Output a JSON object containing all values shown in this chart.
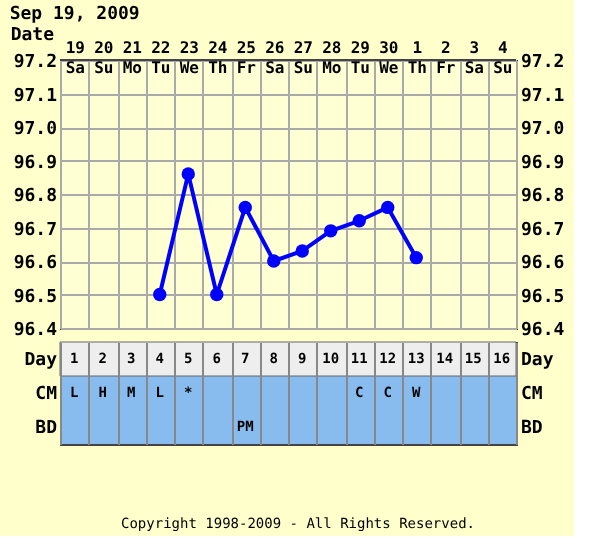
{
  "chart_data": [
    {
      "type": "line",
      "title": "Sep 19, 2009",
      "xlabel": "Date",
      "categories": [
        "19 Sa",
        "20 Su",
        "21 Mo",
        "22 Tu",
        "23 We",
        "24 Th",
        "25 Fr",
        "26 Sa",
        "27 Su",
        "28 Mo",
        "29 Tu",
        "30 We",
        "1 Th",
        "2 Fr",
        "3 Sa",
        "4 Su"
      ],
      "values": [
        null,
        null,
        null,
        96.5,
        96.86,
        96.5,
        96.76,
        96.6,
        96.63,
        96.69,
        96.72,
        96.76,
        96.61,
        null,
        null,
        null
      ],
      "color": "#0000ff",
      "marker": "circle",
      "line_style": "solid",
      "grid": true,
      "ylim": [
        96.4,
        97.2
      ],
      "yticks": [
        96.4,
        96.5,
        96.6,
        96.7,
        96.8,
        96.9,
        {
          "value": 97.0,
          "label": "97.0"
        },
        97.1,
        97.2
      ],
      "y2lim": [
        96.4,
        97.2
      ],
      "y2ticks": [
        96.4,
        96.5,
        96.6,
        96.7,
        96.8,
        96.9,
        {
          "value": 97.0,
          "label": "97.0"
        },
        97.1,
        97.2
      ]
    },
    {
      "type": "heatmap",
      "grid": "x",
      "categories": [
        null,
        null,
        null,
        null,
        null,
        null,
        null,
        null,
        null,
        null,
        null,
        null,
        null,
        null,
        null,
        null
      ],
      "y_categories": [
        "Day",
        "CM",
        "BD"
      ],
      "y2_categories": [
        "Day",
        "CM",
        "BD"
      ],
      "cells": [
        [
          null,
          null,
          null,
          null,
          null,
          null,
          null,
          null,
          null,
          null,
          null,
          null,
          null,
          null,
          null,
          null
        ],
        [
          null,
          null,
          null,
          null,
          null,
          null,
          null,
          null,
          null,
          null,
          null,
          null,
          null,
          null,
          null,
          null
        ],
        [
          null,
          null,
          null,
          null,
          null,
          null,
          null,
          null,
          null,
          null,
          null,
          null,
          null,
          null,
          null,
          null
        ]
      ],
      "cell_labels": [
        [
          "1",
          "2",
          "3",
          "4",
          "5",
          "6",
          "7",
          "8",
          "9",
          "10",
          "11",
          "12",
          "13",
          "14",
          "15",
          "16"
        ],
        [
          "L",
          "H",
          "M",
          "L",
          "*",
          null,
          null,
          null,
          null,
          null,
          "C",
          "C",
          "W",
          null,
          null,
          null
        ],
        [
          null,
          null,
          null,
          null,
          null,
          null,
          "PM",
          null,
          null,
          null,
          null,
          null,
          null,
          null,
          null,
          null
        ]
      ],
      "annotations": [
        "Copyright 1998-2009 - All Rights Reserved."
      ]
    }
  ]
}
